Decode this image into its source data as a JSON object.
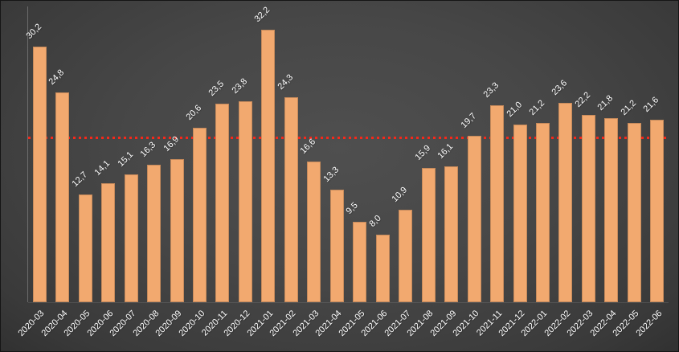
{
  "chart_data": {
    "type": "bar",
    "title": "",
    "xlabel": "",
    "ylabel": "",
    "categories": [
      "2020-03",
      "2020-04",
      "2020-05",
      "2020-06",
      "2020-07",
      "2020-08",
      "2020-09",
      "2020-10",
      "2020-11",
      "2020-12",
      "2021-01",
      "2021-02",
      "2021-03",
      "2021-04",
      "2021-05",
      "2021-06",
      "2021-07",
      "2021-08",
      "2021-09",
      "2021-10",
      "2021-11",
      "2021-12",
      "2022-01",
      "2022-02",
      "2022-03",
      "2022-04",
      "2022-05",
      "2022-06"
    ],
    "values": [
      30.2,
      24.8,
      12.7,
      14.1,
      15.1,
      16.3,
      16.9,
      20.6,
      23.5,
      23.8,
      32.2,
      24.3,
      16.6,
      13.3,
      9.5,
      8.0,
      10.9,
      15.9,
      16.1,
      19.7,
      23.3,
      21.0,
      21.2,
      23.6,
      22.2,
      21.8,
      21.2,
      21.6
    ],
    "data_labels": [
      "30,2",
      "24,8",
      "12,7",
      "14,1",
      "15,1",
      "16,3",
      "16,9",
      "20,6",
      "23,5",
      "23,8",
      "32,2",
      "24,3",
      "16,6",
      "13,3",
      "9,5",
      "8,0",
      "10,9",
      "15,9",
      "16,1",
      "19,7",
      "23,3",
      "21,0",
      "21,2",
      "23,6",
      "22,2",
      "21,8",
      "21,2",
      "21,6"
    ],
    "average_line_value": 19.3,
    "ylim": [
      0,
      35
    ],
    "grid": "off",
    "legend": "none",
    "bar_color": "#f2a96f",
    "avg_line_color": "#f5281a",
    "label_color": "#ffffff",
    "background_color": "#474747"
  }
}
